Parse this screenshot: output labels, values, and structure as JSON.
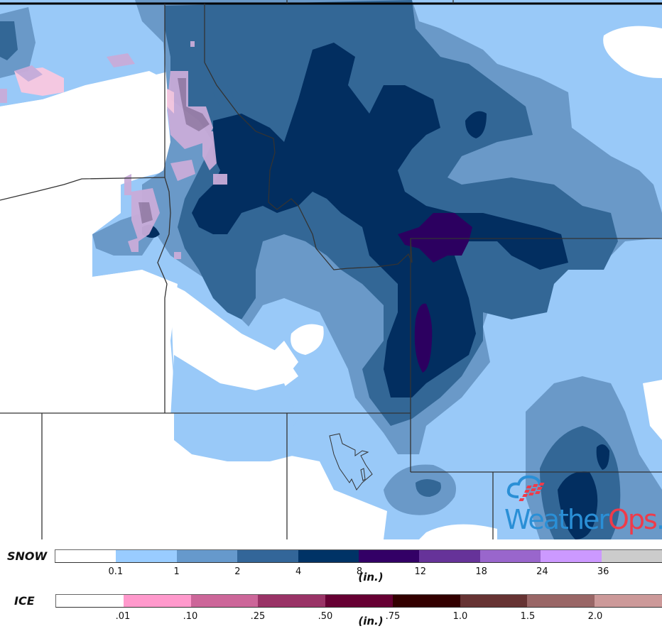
{
  "map": {
    "type": "snow_ice_accumulation_forecast",
    "colors": {
      "none": "#ffffff",
      "snow_0_1": "#99c9f8",
      "snow_1": "#6a99c8",
      "snow_2": "#336796",
      "snow_4": "#022e60",
      "snow_8": "#2c0060",
      "ice_light": "#f9c8e0",
      "ice_mix": "#c9acd9",
      "ice_med": "#9a7fa8",
      "border": "#333333"
    }
  },
  "logo": {
    "part1": "Weather",
    "part2": "Ops",
    "dot": ".",
    "colors": {
      "primary": "#2a8fd6",
      "accent": "#ef3b4a"
    }
  },
  "legend": {
    "snow": {
      "title": "SNOW",
      "unit": "(in.)",
      "segments": [
        "#ffffff",
        "#99ccff",
        "#6699cc",
        "#336699",
        "#003366",
        "#330066",
        "#663399",
        "#9966cc",
        "#cc99ff",
        "#cccccc"
      ],
      "ticks": [
        "0.1",
        "1",
        "2",
        "4",
        "8",
        "12",
        "18",
        "24",
        "36"
      ]
    },
    "ice": {
      "title": "ICE",
      "unit": "(in.)",
      "segments": [
        "#ffffff",
        "#ff99cc",
        "#cc6699",
        "#993366",
        "#660033",
        "#330000",
        "#663333",
        "#996666",
        "#cc9999"
      ],
      "ticks": [
        ".01",
        ".10",
        ".25",
        ".50",
        ".75",
        "1.0",
        "1.5",
        "2.0"
      ]
    }
  }
}
